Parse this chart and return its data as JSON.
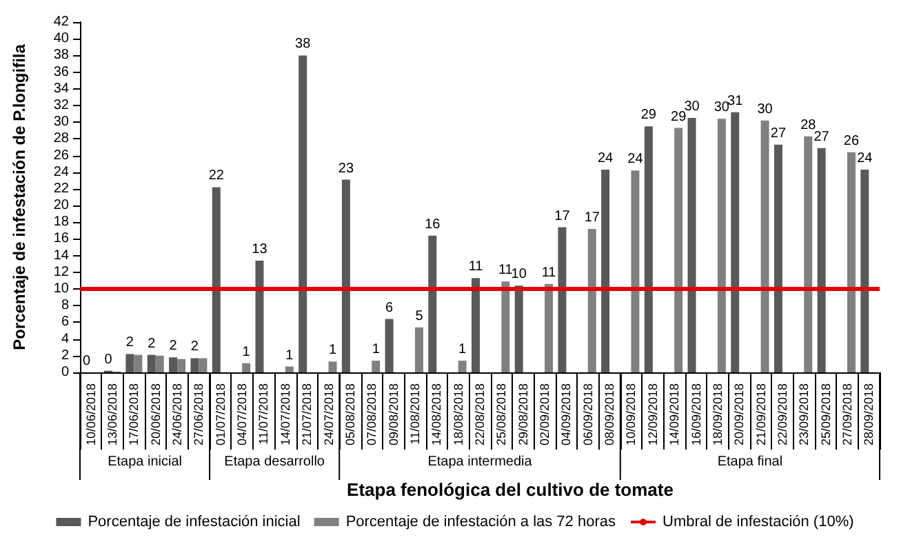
{
  "chart_data": {
    "type": "bar",
    "ylabel": "Porcentaje de infestación de P.longifila",
    "xlabel": "Etapa fenológica del cultivo de tomate",
    "categories": [
      "10/06/2018",
      "13/06/2018",
      "17/06/2018",
      "20/06/2018",
      "24/06/2018",
      "27/06/2018",
      "01/07/2018",
      "04/07/2018",
      "11/07/2018",
      "14/07/2018",
      "21/07/2018",
      "24/07/2018",
      "05/08/2018",
      "07/08/2018",
      "09/08/2018",
      "11/08/2018",
      "14/08/2018",
      "18/08/2018",
      "22/08/2018",
      "25/08/2018",
      "29/08/2018",
      "02/09/2018",
      "04/09/2018",
      "06/09/2018",
      "08/09/2018",
      "10/09/2018",
      "12/09/2018",
      "14/09/2018",
      "16/09/2018",
      "18/09/2018",
      "20/09/2018",
      "21/09/2018",
      "22/09/2018",
      "23/09/2018",
      "25/09/2018",
      "27/09/2018",
      "28/09/2018"
    ],
    "series": [
      {
        "name": "Porcentaje de infestación inicial",
        "color": "#595959",
        "values": [
          0,
          0.2,
          2.2,
          2.1,
          1.8,
          1.7,
          22.2,
          null,
          13.4,
          null,
          38,
          null,
          23.1,
          null,
          6.4,
          null,
          16.4,
          null,
          11.3,
          null,
          10.4,
          null,
          17.4,
          null,
          24.3,
          null,
          29.5,
          null,
          30.5,
          null,
          31.2,
          null,
          27.3,
          null,
          26.9,
          null,
          24.3
        ],
        "value_labels": [
          "0",
          "0",
          "2",
          "2",
          "2",
          "2",
          "22",
          null,
          "13",
          null,
          "38",
          null,
          "23",
          null,
          "6",
          null,
          "16",
          null,
          "11",
          null,
          "10",
          null,
          "17",
          null,
          "24",
          null,
          "29",
          null,
          "30",
          null,
          "31",
          null,
          "27",
          null,
          "27",
          null,
          "24"
        ]
      },
      {
        "name": "Porcentaje de infestación a las 72 horas",
        "color": "#808080",
        "values": [
          0,
          0.1,
          2.1,
          2.0,
          1.6,
          1.7,
          null,
          1.1,
          null,
          0.7,
          null,
          1.3,
          null,
          1.4,
          null,
          5.4,
          null,
          1.4,
          null,
          10.9,
          null,
          10.6,
          null,
          17.2,
          null,
          24.2,
          null,
          29.3,
          null,
          30.4,
          null,
          30.2,
          null,
          28.3,
          null,
          26.4,
          null
        ],
        "value_labels": [
          null,
          null,
          null,
          null,
          null,
          null,
          null,
          "1",
          null,
          "1",
          null,
          "1",
          null,
          "1",
          null,
          "5",
          null,
          "1",
          null,
          "11",
          null,
          "11",
          null,
          "17",
          null,
          "24",
          null,
          "29",
          null,
          "30",
          null,
          "30",
          null,
          "28",
          null,
          "26",
          null
        ]
      }
    ],
    "ref_lines": [
      {
        "axis": "y",
        "value": 10,
        "label": "Umbral de infestación (10%)",
        "color": "#e00000",
        "line_style": "solid"
      }
    ],
    "annotations": [
      "Etapa inicial",
      "Etapa desarrollo",
      "Etapa intermedia",
      "Etapa final"
    ],
    "ylim": [
      0,
      42
    ],
    "yticks": [
      0,
      2,
      4,
      6,
      8,
      10,
      12,
      14,
      16,
      18,
      20,
      22,
      24,
      26,
      28,
      30,
      32,
      34,
      36,
      38,
      40,
      42
    ],
    "grid": false,
    "legend": "bottom"
  }
}
